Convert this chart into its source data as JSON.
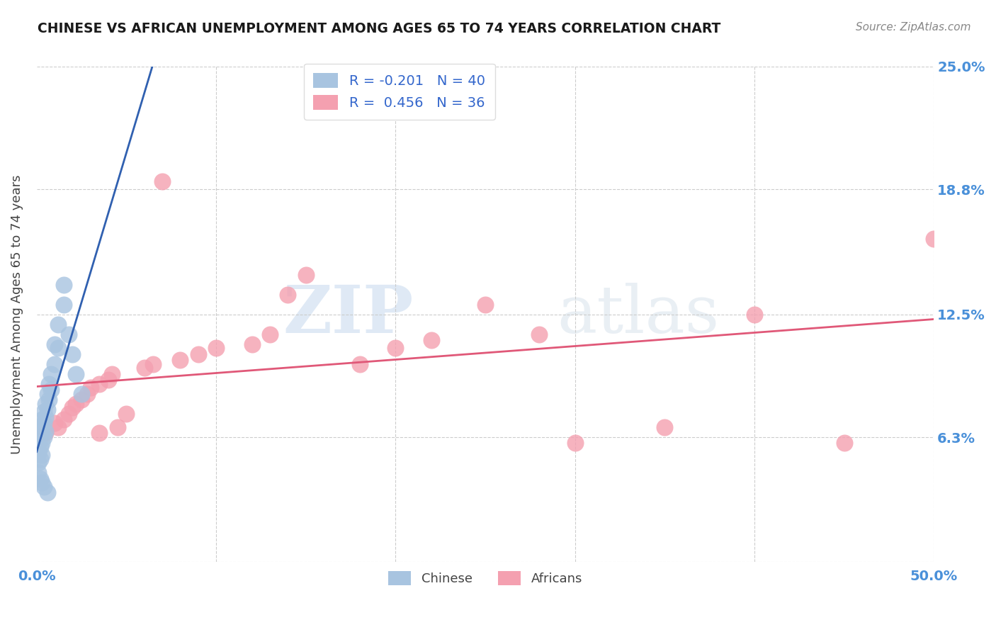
{
  "title": "CHINESE VS AFRICAN UNEMPLOYMENT AMONG AGES 65 TO 74 YEARS CORRELATION CHART",
  "source": "Source: ZipAtlas.com",
  "ylabel": "Unemployment Among Ages 65 to 74 years",
  "xlim": [
    0.0,
    0.5
  ],
  "ylim": [
    0.0,
    0.25
  ],
  "xticks": [
    0.0,
    0.1,
    0.2,
    0.3,
    0.4,
    0.5
  ],
  "xticklabels": [
    "0.0%",
    "",
    "",
    "",
    "",
    "50.0%"
  ],
  "ytick_positions": [
    0.0,
    0.063,
    0.125,
    0.188,
    0.25
  ],
  "yticklabels": [
    "",
    "6.3%",
    "12.5%",
    "18.8%",
    "25.0%"
  ],
  "chinese_R": -0.201,
  "chinese_N": 40,
  "african_R": 0.456,
  "african_N": 36,
  "chinese_color": "#a8c4e0",
  "african_color": "#f4a0b0",
  "chinese_line_color": "#3060b0",
  "african_line_color": "#e05878",
  "chinese_scatter_x": [
    0.001,
    0.001,
    0.001,
    0.001,
    0.001,
    0.002,
    0.002,
    0.002,
    0.002,
    0.003,
    0.003,
    0.003,
    0.003,
    0.004,
    0.004,
    0.004,
    0.005,
    0.005,
    0.005,
    0.006,
    0.006,
    0.007,
    0.007,
    0.008,
    0.008,
    0.01,
    0.01,
    0.012,
    0.012,
    0.015,
    0.015,
    0.018,
    0.02,
    0.022,
    0.025,
    0.001,
    0.002,
    0.003,
    0.004,
    0.006
  ],
  "chinese_scatter_y": [
    0.065,
    0.063,
    0.06,
    0.055,
    0.05,
    0.068,
    0.064,
    0.058,
    0.052,
    0.072,
    0.066,
    0.06,
    0.054,
    0.076,
    0.07,
    0.063,
    0.08,
    0.073,
    0.066,
    0.085,
    0.077,
    0.09,
    0.082,
    0.095,
    0.087,
    0.11,
    0.1,
    0.12,
    0.108,
    0.14,
    0.13,
    0.115,
    0.105,
    0.095,
    0.085,
    0.045,
    0.042,
    0.04,
    0.038,
    0.035
  ],
  "african_scatter_x": [
    0.005,
    0.01,
    0.012,
    0.015,
    0.018,
    0.02,
    0.022,
    0.025,
    0.028,
    0.03,
    0.035,
    0.035,
    0.04,
    0.042,
    0.045,
    0.05,
    0.06,
    0.065,
    0.07,
    0.08,
    0.09,
    0.1,
    0.12,
    0.13,
    0.14,
    0.15,
    0.18,
    0.2,
    0.22,
    0.25,
    0.28,
    0.3,
    0.35,
    0.4,
    0.45,
    0.5
  ],
  "african_scatter_y": [
    0.065,
    0.07,
    0.068,
    0.072,
    0.075,
    0.078,
    0.08,
    0.082,
    0.085,
    0.088,
    0.065,
    0.09,
    0.092,
    0.095,
    0.068,
    0.075,
    0.098,
    0.1,
    0.192,
    0.102,
    0.105,
    0.108,
    0.11,
    0.115,
    0.135,
    0.145,
    0.1,
    0.108,
    0.112,
    0.13,
    0.115,
    0.06,
    0.068,
    0.125,
    0.06,
    0.163
  ],
  "background_color": "#ffffff",
  "grid_color": "#cccccc",
  "tick_label_color": "#4a90d9",
  "watermark_zip": "ZIP",
  "watermark_atlas": "atlas",
  "legend_label_chinese": "R = -0.201   N = 40",
  "legend_label_african": "R =  0.456   N = 36"
}
